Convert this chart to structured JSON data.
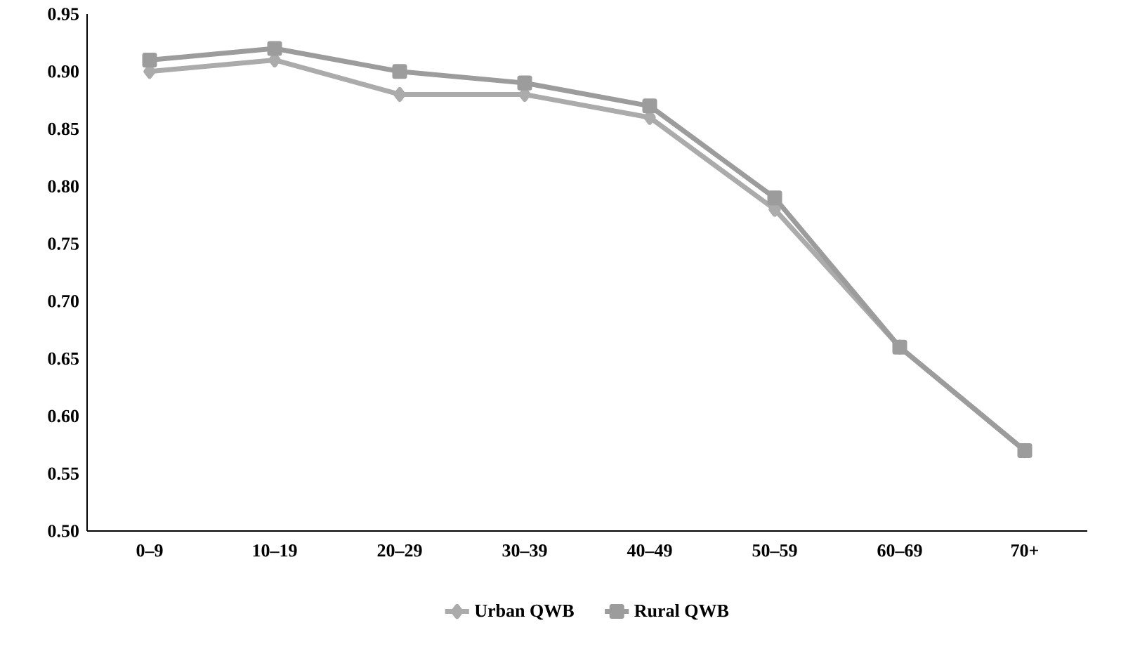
{
  "chart_data": {
    "type": "line",
    "categories": [
      "0–9",
      "10–19",
      "20–29",
      "30–39",
      "40–49",
      "50–59",
      "60–69",
      "70+"
    ],
    "series": [
      {
        "name": "Urban QWB",
        "color": "#ababab",
        "marker": "diamond",
        "values": [
          0.9,
          0.91,
          0.88,
          0.88,
          0.86,
          0.78,
          0.66,
          0.57
        ]
      },
      {
        "name": "Rural QWB",
        "color": "#9c9c9c",
        "marker": "square",
        "values": [
          0.91,
          0.92,
          0.9,
          0.89,
          0.87,
          0.79,
          0.66,
          0.57
        ]
      }
    ],
    "ylim": [
      0.5,
      0.95
    ],
    "yticks": [
      {
        "value": 0.5,
        "label": "0.50"
      },
      {
        "value": 0.55,
        "label": "0.55"
      },
      {
        "value": 0.6,
        "label": "0.60"
      },
      {
        "value": 0.65,
        "label": "0.65"
      },
      {
        "value": 0.7,
        "label": "0.70"
      },
      {
        "value": 0.75,
        "label": "0.75"
      },
      {
        "value": 0.8,
        "label": "0.80"
      },
      {
        "value": 0.85,
        "label": "0.85"
      },
      {
        "value": 0.9,
        "label": "0.90"
      },
      {
        "value": 0.95,
        "label": "0.95"
      }
    ],
    "grid": false,
    "legend": "bottom",
    "line_style": "solid"
  }
}
